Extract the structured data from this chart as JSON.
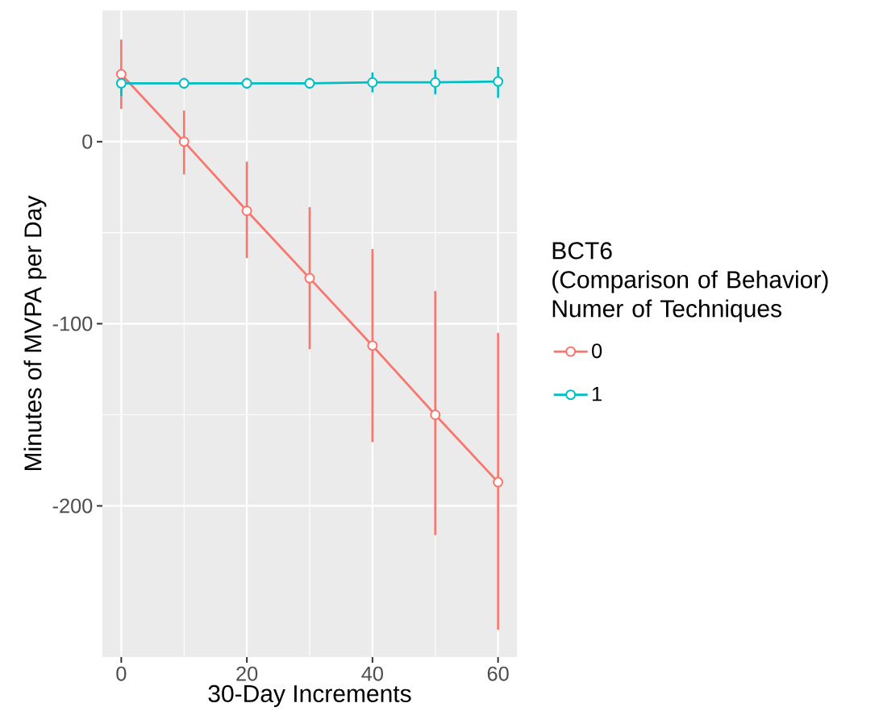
{
  "chart_data": {
    "type": "line",
    "xlabel": "30-Day Increments",
    "ylabel": "Minutes of MVPA per Day",
    "legend_title": "BCT6 (Comparison of Behavior) Numer of Techniques",
    "x": [
      0,
      10,
      20,
      30,
      40,
      50,
      60
    ],
    "series": [
      {
        "name": "0",
        "color": "#f8766d",
        "values": [
          37,
          0,
          -38,
          -75,
          -112,
          -150,
          -187
        ],
        "errors": [
          [
            18,
            56
          ],
          [
            -18,
            17
          ],
          [
            -64,
            -11
          ],
          [
            -114,
            -36
          ],
          [
            -165,
            -59
          ],
          [
            -216,
            -82
          ],
          [
            -268,
            -105
          ]
        ]
      },
      {
        "name": "1",
        "color": "#00bfc4",
        "values": [
          32,
          32,
          32,
          32,
          32.5,
          32.5,
          33
        ],
        "errors": [
          [
            25,
            39
          ],
          [
            29,
            35
          ],
          [
            29,
            35
          ],
          [
            29,
            35
          ],
          [
            27,
            38
          ],
          [
            26,
            39.5
          ],
          [
            24,
            41
          ]
        ]
      }
    ],
    "xlim": [
      -3,
      63
    ],
    "ylim": [
      -283,
      72
    ],
    "xticks": [
      0,
      20,
      40,
      60
    ],
    "yticks": [
      -200,
      -100,
      0
    ],
    "grid": true,
    "legend": "right",
    "marker": "circle",
    "line_style": "solid"
  }
}
